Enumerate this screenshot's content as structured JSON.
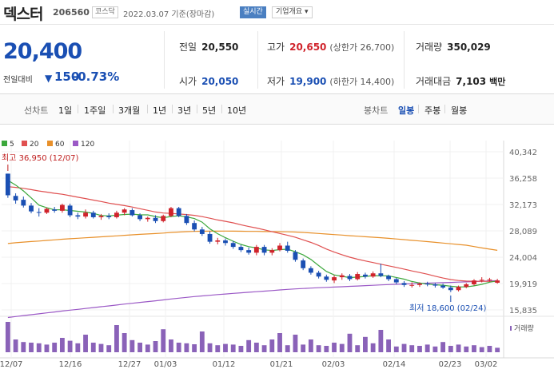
{
  "header": {
    "stock_name": "덱스터",
    "stock_code": "206560",
    "market_badge": "코스닥",
    "date_text": "2022.03.07  기준(장마감)",
    "realtime_label": "실시간",
    "corp_overview_label": "기업개요 ▾"
  },
  "price": {
    "current": "20,400",
    "change_label": "전일대비",
    "change_arrow": "▼",
    "change_value": "150",
    "change_pct": "-0.73%"
  },
  "stats": {
    "prev_label": "전일",
    "prev": "20,550",
    "high_label": "고가",
    "high": "20,650",
    "upper_limit": "(상한가 26,700)",
    "volume_label": "거래량",
    "volume": "350,029",
    "open_label": "시가",
    "open": "20,050",
    "low_label": "저가",
    "low": "19,900",
    "lower_limit": "(하한가 14,400)",
    "amount_label": "거래대금",
    "amount": "7,103",
    "amount_unit": "백만"
  },
  "periods": {
    "line_label": "선차트",
    "items": [
      "1일",
      "1주일",
      "3개월",
      "1년",
      "3년",
      "5년",
      "10년"
    ],
    "candle_label": "봉차트",
    "candle_items": [
      "일봉",
      "주봉",
      "월봉"
    ],
    "candle_active": "일봉"
  },
  "colors": {
    "up": "#d0232b",
    "down": "#1a4fb3",
    "ma5": "#3ca83c",
    "ma20": "#e05050",
    "ma60": "#e8902a",
    "ma120": "#9b59c6",
    "volume": "#8a62b8"
  },
  "chart_data": {
    "type": "candlestick",
    "legend": [
      {
        "name": "5",
        "color": "#3ca83c"
      },
      {
        "name": "20",
        "color": "#e05050"
      },
      {
        "name": "60",
        "color": "#e8902a"
      },
      {
        "name": "120",
        "color": "#9b59c6"
      }
    ],
    "y_ticks": [
      "40,342",
      "36,258",
      "32,173",
      "28,089",
      "24,004",
      "19,919",
      "15,835"
    ],
    "ylim": [
      15835,
      40342
    ],
    "x_labels": [
      "12/07",
      "12/16",
      "12/27",
      "01/03",
      "01/12",
      "01/21",
      "02/03",
      "02/14",
      "02/23",
      "03/02"
    ],
    "max_annotation": "최고 36,950 (12/07)",
    "min_annotation": "최저 18,600 (02/24)",
    "volume_label": "거래량",
    "candles": [
      {
        "o": 36950,
        "h": 36950,
        "l": 33200,
        "c": 33600
      },
      {
        "o": 33500,
        "h": 33900,
        "l": 32300,
        "c": 32800
      },
      {
        "o": 32900,
        "h": 33400,
        "l": 31700,
        "c": 32000
      },
      {
        "o": 32000,
        "h": 32400,
        "l": 30800,
        "c": 31100
      },
      {
        "o": 31000,
        "h": 31600,
        "l": 30300,
        "c": 30900
      },
      {
        "o": 30900,
        "h": 31700,
        "l": 30700,
        "c": 31500
      },
      {
        "o": 31400,
        "h": 31800,
        "l": 30900,
        "c": 31200
      },
      {
        "o": 31200,
        "h": 32300,
        "l": 30900,
        "c": 32100
      },
      {
        "o": 32000,
        "h": 32300,
        "l": 30200,
        "c": 30500
      },
      {
        "o": 30500,
        "h": 30900,
        "l": 29900,
        "c": 30300
      },
      {
        "o": 30300,
        "h": 31400,
        "l": 30000,
        "c": 30900
      },
      {
        "o": 30900,
        "h": 31200,
        "l": 30000,
        "c": 30200
      },
      {
        "o": 30200,
        "h": 30700,
        "l": 29800,
        "c": 30400
      },
      {
        "o": 30400,
        "h": 30800,
        "l": 29900,
        "c": 30200
      },
      {
        "o": 30200,
        "h": 31200,
        "l": 30000,
        "c": 30900
      },
      {
        "o": 30900,
        "h": 31600,
        "l": 30500,
        "c": 31400
      },
      {
        "o": 31300,
        "h": 31600,
        "l": 30300,
        "c": 30500
      },
      {
        "o": 30500,
        "h": 30800,
        "l": 29600,
        "c": 29900
      },
      {
        "o": 29900,
        "h": 30300,
        "l": 29500,
        "c": 30100
      },
      {
        "o": 30100,
        "h": 30500,
        "l": 29300,
        "c": 29600
      },
      {
        "o": 29600,
        "h": 30600,
        "l": 29400,
        "c": 30400
      },
      {
        "o": 30400,
        "h": 31800,
        "l": 30200,
        "c": 31600
      },
      {
        "o": 31600,
        "h": 31800,
        "l": 30200,
        "c": 30400
      },
      {
        "o": 30400,
        "h": 30700,
        "l": 29000,
        "c": 29300
      },
      {
        "o": 29300,
        "h": 29700,
        "l": 28000,
        "c": 28300
      },
      {
        "o": 28300,
        "h": 28700,
        "l": 27300,
        "c": 27600
      },
      {
        "o": 27600,
        "h": 28000,
        "l": 26100,
        "c": 26400
      },
      {
        "o": 26400,
        "h": 27000,
        "l": 26000,
        "c": 26600
      },
      {
        "o": 26600,
        "h": 26900,
        "l": 25800,
        "c": 26200
      },
      {
        "o": 26200,
        "h": 26500,
        "l": 25300,
        "c": 25600
      },
      {
        "o": 25600,
        "h": 25900,
        "l": 24800,
        "c": 25100
      },
      {
        "o": 25100,
        "h": 25500,
        "l": 24400,
        "c": 24700
      },
      {
        "o": 24700,
        "h": 25900,
        "l": 24300,
        "c": 25600
      },
      {
        "o": 25600,
        "h": 25900,
        "l": 24300,
        "c": 24700
      },
      {
        "o": 24700,
        "h": 25400,
        "l": 24300,
        "c": 25100
      },
      {
        "o": 25100,
        "h": 26200,
        "l": 24900,
        "c": 25800
      },
      {
        "o": 25800,
        "h": 26400,
        "l": 24700,
        "c": 25000
      },
      {
        "o": 24800,
        "h": 25100,
        "l": 23300,
        "c": 23600
      },
      {
        "o": 23500,
        "h": 23800,
        "l": 22000,
        "c": 22300
      },
      {
        "o": 22300,
        "h": 22600,
        "l": 21300,
        "c": 21600
      },
      {
        "o": 21600,
        "h": 21900,
        "l": 20700,
        "c": 21000
      },
      {
        "o": 21000,
        "h": 21300,
        "l": 20200,
        "c": 20500
      },
      {
        "o": 20400,
        "h": 21200,
        "l": 20000,
        "c": 20900
      },
      {
        "o": 20900,
        "h": 21500,
        "l": 20500,
        "c": 21200
      },
      {
        "o": 21100,
        "h": 21400,
        "l": 20300,
        "c": 20600
      },
      {
        "o": 20600,
        "h": 21700,
        "l": 20400,
        "c": 21400
      },
      {
        "o": 21300,
        "h": 21600,
        "l": 20700,
        "c": 21000
      },
      {
        "o": 21000,
        "h": 21800,
        "l": 20800,
        "c": 21500
      },
      {
        "o": 21500,
        "h": 23000,
        "l": 20900,
        "c": 21100
      },
      {
        "o": 21100,
        "h": 21300,
        "l": 20300,
        "c": 20600
      },
      {
        "o": 20600,
        "h": 20800,
        "l": 19800,
        "c": 20100
      },
      {
        "o": 20000,
        "h": 20300,
        "l": 19400,
        "c": 19700
      },
      {
        "o": 19700,
        "h": 20100,
        "l": 19300,
        "c": 19700
      },
      {
        "o": 19700,
        "h": 20100,
        "l": 19400,
        "c": 19900
      },
      {
        "o": 19900,
        "h": 20200,
        "l": 19500,
        "c": 19800
      },
      {
        "o": 19800,
        "h": 20000,
        "l": 19300,
        "c": 19600
      },
      {
        "o": 19600,
        "h": 19900,
        "l": 19100,
        "c": 19300
      },
      {
        "o": 19300,
        "h": 19600,
        "l": 18600,
        "c": 18900
      },
      {
        "o": 18900,
        "h": 19600,
        "l": 18700,
        "c": 19400
      },
      {
        "o": 19400,
        "h": 20000,
        "l": 19200,
        "c": 19800
      },
      {
        "o": 19800,
        "h": 20600,
        "l": 19600,
        "c": 20400
      },
      {
        "o": 20400,
        "h": 20900,
        "l": 20100,
        "c": 20500
      },
      {
        "o": 20500,
        "h": 20800,
        "l": 20200,
        "c": 20550
      },
      {
        "o": 20050,
        "h": 20650,
        "l": 19900,
        "c": 20400
      }
    ],
    "volume": [
      95,
      40,
      32,
      30,
      28,
      24,
      30,
      45,
      36,
      28,
      55,
      30,
      26,
      22,
      85,
      60,
      38,
      30,
      24,
      35,
      72,
      40,
      30,
      28,
      25,
      65,
      28,
      22,
      26,
      24,
      20,
      38,
      30,
      22,
      40,
      60,
      22,
      55,
      24,
      40,
      22,
      20,
      30,
      26,
      58,
      22,
      48,
      28,
      70,
      40,
      18,
      26,
      22,
      20,
      24,
      18,
      32,
      20,
      24,
      18,
      22,
      16,
      20,
      14
    ],
    "volume_max": 100
  }
}
